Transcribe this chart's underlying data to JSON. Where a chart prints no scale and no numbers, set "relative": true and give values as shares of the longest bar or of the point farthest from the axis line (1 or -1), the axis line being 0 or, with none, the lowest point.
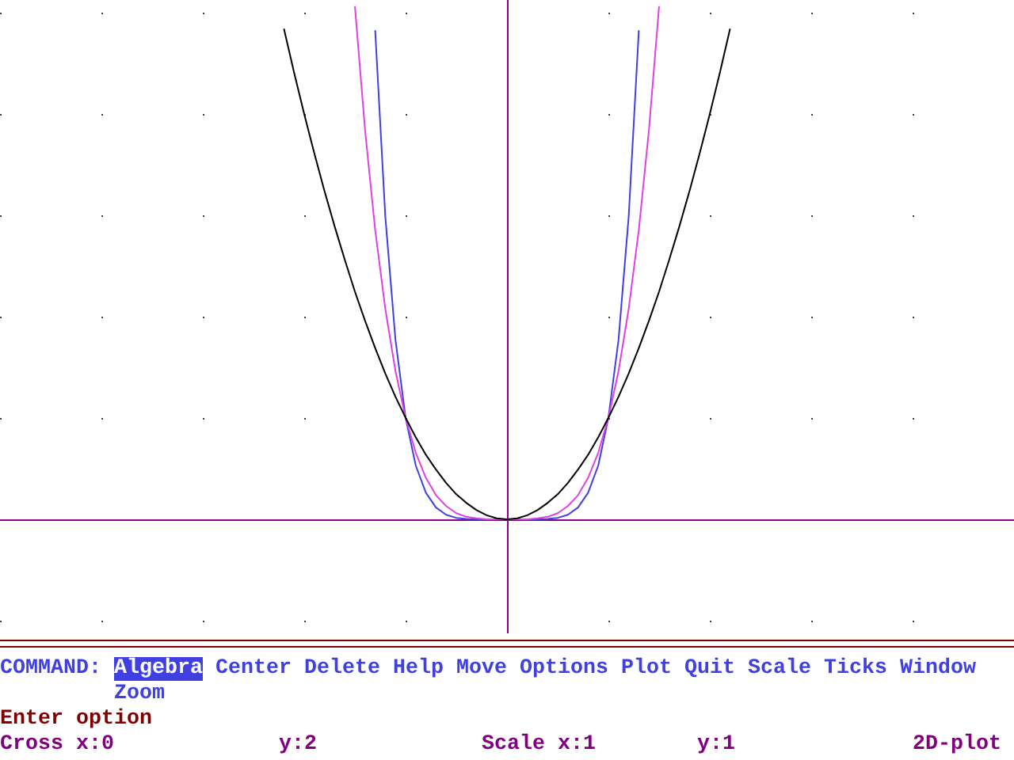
{
  "chart_data": {
    "type": "line",
    "relative": true,
    "legend": false,
    "marker": "none",
    "line_style": "solid",
    "categories": [
      null,
      null,
      null,
      null,
      null,
      null,
      null,
      null,
      null,
      null,
      null,
      null,
      null,
      null,
      null,
      null,
      null,
      null,
      null,
      null,
      null,
      null,
      null,
      null,
      null,
      null,
      null,
      null,
      null,
      null,
      null,
      null,
      null,
      null,
      null,
      null,
      null,
      null,
      null,
      null,
      null,
      null,
      null,
      null,
      null,
      null,
      null,
      null,
      null,
      null,
      null,
      null,
      null,
      null,
      null,
      null,
      null,
      null,
      null,
      null,
      null,
      null,
      null,
      null,
      null,
      null,
      null,
      null,
      null,
      null,
      null,
      null,
      null,
      null,
      null,
      null,
      null,
      null,
      null,
      null,
      null,
      null,
      null,
      null,
      null,
      null,
      null,
      null,
      null,
      null,
      null,
      null,
      null,
      null,
      null,
      null,
      null,
      null,
      null,
      null,
      null
    ],
    "series": [
      {
        "color": "#000000",
        "values": [
          null,
          null,
          null,
          null,
          null,
          null,
          null,
          null,
          null,
          null,
          null,
          null,
          null,
          null,
          null,
          null,
          null,
          null,
          null,
          null,
          null,
          null,
          null,
          null,
          null,
          null,
          null,
          null,
          0.956,
          0.871,
          0.79,
          0.713,
          0.64,
          0.571,
          0.506,
          0.444,
          0.387,
          0.334,
          0.284,
          0.239,
          0.198,
          0.16,
          0.126,
          0.097,
          0.071,
          0.049,
          0.032,
          0.018,
          0.008,
          0.002,
          0,
          0.002,
          0.008,
          0.018,
          0.032,
          0.049,
          0.071,
          0.097,
          0.126,
          0.16,
          0.198,
          0.239,
          0.284,
          0.334,
          0.387,
          0.444,
          0.506,
          0.571,
          0.64,
          0.713,
          0.79,
          0.871,
          0.956,
          null,
          null,
          null,
          null,
          null,
          null,
          null,
          null,
          null,
          null,
          null,
          null,
          null,
          null,
          null,
          null,
          null,
          null,
          null,
          null,
          null,
          null,
          null,
          null,
          null,
          null,
          null,
          null
        ]
      },
      {
        "color": "#e040e0",
        "values": [
          null,
          null,
          null,
          null,
          null,
          null,
          null,
          null,
          null,
          null,
          null,
          null,
          null,
          null,
          null,
          null,
          null,
          null,
          null,
          null,
          null,
          null,
          null,
          null,
          null,
          null,
          null,
          null,
          null,
          null,
          null,
          null,
          null,
          null,
          null,
          1,
          0.759,
          0.564,
          0.41,
          0.289,
          0.198,
          0.13,
          0.081,
          0.047,
          0.026,
          0.012,
          0.005,
          0.002,
          0,
          0,
          0,
          0,
          0,
          0.002,
          0.005,
          0.012,
          0.026,
          0.047,
          0.081,
          0.13,
          0.198,
          0.289,
          0.41,
          0.564,
          0.759,
          1,
          null,
          null,
          null,
          null,
          null,
          null,
          null,
          null,
          null,
          null,
          null,
          null,
          null,
          null,
          null,
          null,
          null,
          null,
          null,
          null,
          null,
          null,
          null,
          null,
          null,
          null,
          null,
          null,
          null,
          null,
          null,
          null,
          null,
          null,
          null
        ]
      },
      {
        "color": "#4040e0",
        "values": [
          null,
          null,
          null,
          null,
          null,
          null,
          null,
          null,
          null,
          null,
          null,
          null,
          null,
          null,
          null,
          null,
          null,
          null,
          null,
          null,
          null,
          null,
          null,
          null,
          null,
          null,
          null,
          null,
          null,
          null,
          null,
          null,
          null,
          null,
          null,
          null,
          null,
          0.953,
          0.59,
          0.35,
          0.198,
          0.105,
          0.052,
          0.023,
          0.009,
          0.003,
          0.001,
          0,
          0,
          0,
          0,
          0,
          0,
          0,
          0.001,
          0.003,
          0.009,
          0.023,
          0.052,
          0.105,
          0.198,
          0.35,
          0.59,
          0.953,
          null,
          null,
          null,
          null,
          null,
          null,
          null,
          null,
          null,
          null,
          null,
          null,
          null,
          null,
          null,
          null,
          null,
          null,
          null,
          null,
          null,
          null,
          null,
          null,
          null,
          null,
          null,
          null,
          null,
          null,
          null,
          null,
          null,
          null,
          null,
          null,
          null
        ]
      }
    ],
    "annotations": [
      "COMMAND:",
      "Algebra",
      "Center",
      "Delete",
      "Help",
      "Move",
      "Options",
      "Plot",
      "Quit",
      "Scale",
      "Ticks",
      "Window",
      "Zoom",
      "Enter option",
      "Cross x:0",
      "y:2",
      "Scale x:1",
      "y:1",
      "2D-plot"
    ]
  }
}
